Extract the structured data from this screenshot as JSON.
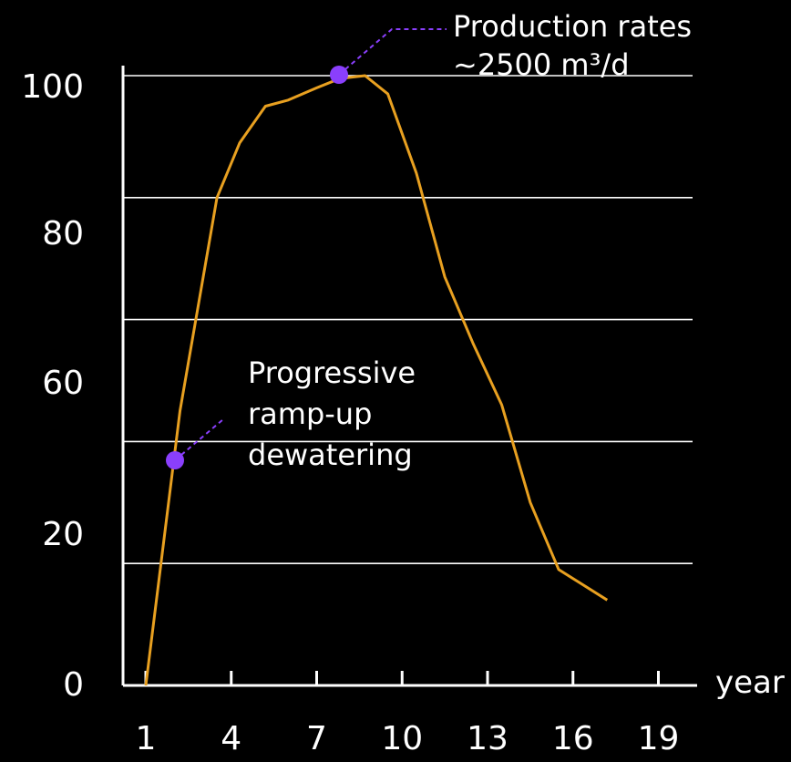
{
  "chart_data": {
    "type": "line",
    "xlabel": "year",
    "ylabel": "",
    "y_tick_labels": [
      "0",
      "20",
      "60",
      "80",
      "100"
    ],
    "x_ticks": [
      1,
      4,
      7,
      10,
      13,
      16,
      19
    ],
    "xlim": [
      0.2,
      20.2
    ],
    "ylim": [
      0,
      100
    ],
    "grid": true,
    "colors": {
      "background": "#000000",
      "line": "#e8a020",
      "marker": "#8a3ffc",
      "grid": "#ffffff",
      "text": "#ffffff"
    },
    "series": [
      {
        "x": [
          1,
          2.2,
          3.5,
          4.3,
          5.2,
          6.0,
          7.0,
          7.8,
          8.7,
          9.5,
          10.5,
          11.5,
          12.5,
          13.5,
          14.5,
          15.5,
          17.2
        ],
        "y": [
          0,
          45,
          80,
          89,
          95,
          96,
          98,
          99.5,
          100,
          97,
          84,
          67,
          56,
          46,
          30,
          19,
          14
        ]
      }
    ],
    "annotations": [
      {
        "lines": [
          "Production rates",
          "~2500 m³/d"
        ],
        "point": {
          "x": 8.7,
          "y": 100
        }
      },
      {
        "lines": [
          "Progressive",
          "ramp-up",
          "dewatering"
        ],
        "point": {
          "x": 2.2,
          "y": 45
        }
      }
    ]
  }
}
